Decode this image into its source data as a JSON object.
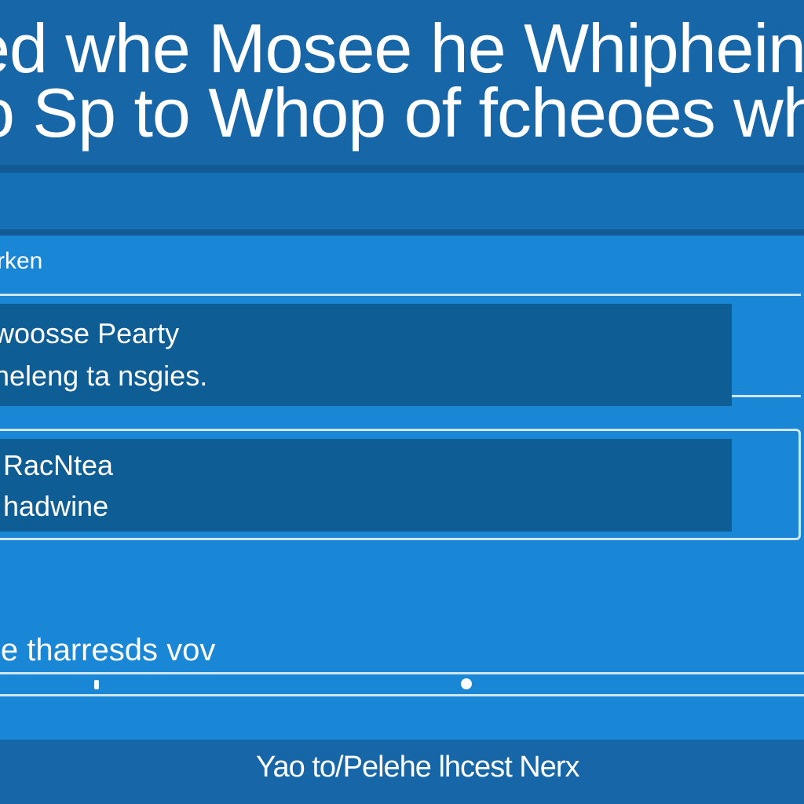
{
  "header": {
    "line1": "ed whe Mosee he Whipheing at",
    "line2": "o Sp to Whop of fcheoes whd o"
  },
  "section": {
    "label": "rken"
  },
  "cards": [
    {
      "line1": "woosse Pearty",
      "line2": "heleng ta nsgies."
    },
    {
      "line1": "RacNtea",
      "line2": "hadwine"
    }
  ],
  "field": {
    "label": "le tharresds vov"
  },
  "slider": {
    "tick_value": 0.12,
    "thumb_value": 0.58
  },
  "footer": {
    "text": "Yao to/Pelehe lhcest Nerx"
  },
  "colors": {
    "background": "#1a86d6",
    "header": "#1767a8",
    "card": "#0f5d95",
    "border": "#cfe6f8"
  }
}
